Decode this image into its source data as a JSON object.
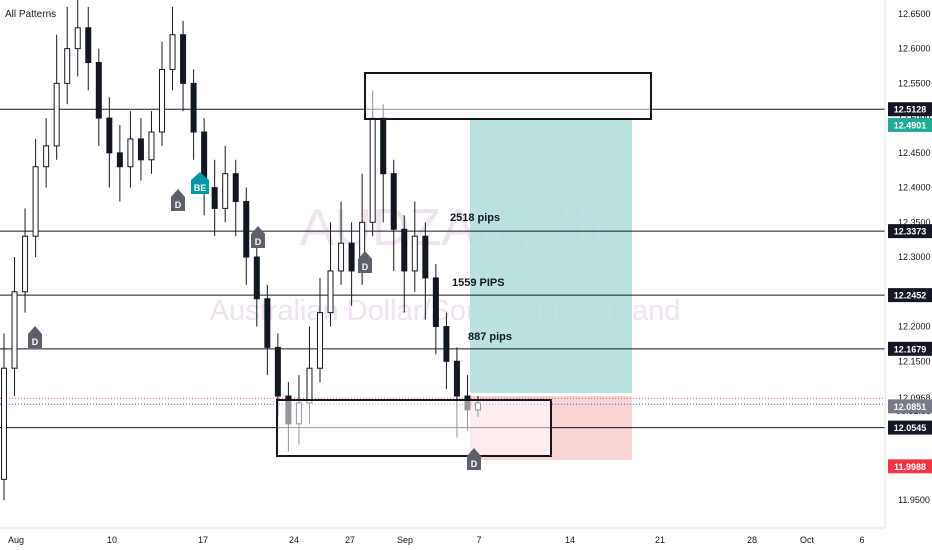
{
  "header": {
    "patterns_label": "All Patterns"
  },
  "watermark": {
    "symbol": "AUDZAR, 4h",
    "name": "Australian Dollar/South African Rand"
  },
  "chart_data": {
    "type": "candlestick",
    "symbol": "AUDZAR",
    "timeframe": "4h",
    "ylim": [
      11.91,
      12.67
    ],
    "y_ticks": [
      "12.6500",
      "12.6000",
      "12.5500",
      "12.5000",
      "12.4500",
      "12.4000",
      "12.3500",
      "12.3000",
      "12.2500",
      "12.2000",
      "12.1500",
      "12.0968",
      "12.0500",
      "12.0000",
      "11.9500"
    ],
    "x_ticks": [
      "Aug",
      "10",
      "17",
      "24",
      "27",
      "Sep",
      "7",
      "14",
      "21",
      "28",
      "Oct",
      "6"
    ],
    "candles": [
      [
        11.98,
        12.14,
        12.19,
        11.95
      ],
      [
        12.14,
        12.25,
        12.3,
        12.1
      ],
      [
        12.25,
        12.33,
        12.37,
        12.22
      ],
      [
        12.33,
        12.43,
        12.47,
        12.3
      ],
      [
        12.43,
        12.46,
        12.5,
        12.4
      ],
      [
        12.46,
        12.55,
        12.62,
        12.44
      ],
      [
        12.55,
        12.6,
        12.66,
        12.52
      ],
      [
        12.6,
        12.63,
        12.67,
        12.56
      ],
      [
        12.63,
        12.58,
        12.66,
        12.54
      ],
      [
        12.58,
        12.5,
        12.6,
        12.46
      ],
      [
        12.5,
        12.45,
        12.53,
        12.4
      ],
      [
        12.45,
        12.43,
        12.49,
        12.38
      ],
      [
        12.43,
        12.47,
        12.51,
        12.4
      ],
      [
        12.47,
        12.44,
        12.5,
        12.41
      ],
      [
        12.44,
        12.48,
        12.51,
        12.42
      ],
      [
        12.48,
        12.57,
        12.61,
        12.46
      ],
      [
        12.57,
        12.62,
        12.66,
        12.54
      ],
      [
        12.62,
        12.55,
        12.64,
        12.51
      ],
      [
        12.55,
        12.48,
        12.57,
        12.44
      ],
      [
        12.48,
        12.4,
        12.5,
        12.36
      ],
      [
        12.4,
        12.37,
        12.44,
        12.33
      ],
      [
        12.37,
        12.42,
        12.46,
        12.35
      ],
      [
        12.42,
        12.38,
        12.44,
        12.33
      ],
      [
        12.38,
        12.3,
        12.4,
        12.26
      ],
      [
        12.3,
        12.24,
        12.32,
        12.2
      ],
      [
        12.24,
        12.17,
        12.26,
        12.13
      ],
      [
        12.17,
        12.1,
        12.19,
        12.07
      ],
      [
        12.1,
        12.06,
        12.12,
        12.02
      ],
      [
        12.06,
        12.09,
        12.13,
        12.03
      ],
      [
        12.09,
        12.14,
        12.2,
        12.06
      ],
      [
        12.14,
        12.22,
        12.27,
        12.12
      ],
      [
        12.22,
        12.28,
        12.35,
        12.2
      ],
      [
        12.28,
        12.32,
        12.38,
        12.26
      ],
      [
        12.32,
        12.28,
        12.35,
        12.23
      ],
      [
        12.28,
        12.35,
        12.42,
        12.26
      ],
      [
        12.35,
        12.5,
        12.54,
        12.33
      ],
      [
        12.5,
        12.42,
        12.52,
        12.35
      ],
      [
        12.42,
        12.34,
        12.44,
        12.28
      ],
      [
        12.34,
        12.28,
        12.36,
        12.22
      ],
      [
        12.28,
        12.33,
        12.38,
        12.25
      ],
      [
        12.33,
        12.27,
        12.35,
        12.21
      ],
      [
        12.27,
        12.2,
        12.29,
        12.16
      ],
      [
        12.2,
        12.15,
        12.22,
        12.11
      ],
      [
        12.15,
        12.1,
        12.17,
        12.04
      ],
      [
        12.1,
        12.08,
        12.13,
        12.05
      ],
      [
        12.08,
        12.09,
        12.1,
        12.07
      ]
    ],
    "horizontal_levels": [
      12.5128,
      12.3373,
      12.2452,
      12.1679,
      12.0545
    ],
    "current_price": 12.0968,
    "countdown": "03:32:33",
    "current_price_b": 12.0851,
    "position": {
      "entry": 12.0968,
      "target": 12.4901,
      "stop": 11.9988
    },
    "zones": [
      {
        "top": 12.555,
        "bottom": 12.49
      },
      {
        "top": 12.085,
        "bottom": 12.0
      }
    ],
    "annotations": [
      "2518 pips",
      "1559 PIPS",
      "887 pips"
    ],
    "markers": [
      "D",
      "BE",
      "D",
      "D",
      "D",
      "D"
    ]
  },
  "price_tags": [
    {
      "value": "12.5128",
      "color": "#131722"
    },
    {
      "value": "12.4901",
      "color": "#22ab94"
    },
    {
      "value": "12.3373",
      "color": "#131722"
    },
    {
      "value": "12.2452",
      "color": "#131722"
    },
    {
      "value": "12.1679",
      "color": "#131722"
    },
    {
      "value": "12.0851",
      "color": "#787b86"
    },
    {
      "value": "12.0545",
      "color": "#131722"
    },
    {
      "value": "11.9988",
      "color": "#f23645"
    }
  ],
  "colors": {
    "candle": "#131722",
    "profit": "#b2dfdb",
    "loss": "#f8d0d0",
    "be_marker": "#0097a7",
    "d_marker": "#5d606b"
  }
}
